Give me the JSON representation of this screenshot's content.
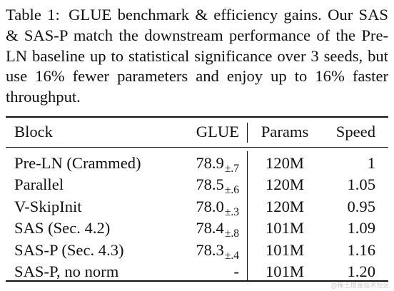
{
  "caption": {
    "label": "Table 1:",
    "text": "GLUE benchmark & efficiency gains. Our SAS & SAS-P match the downstream performance of the Pre-LN baseline up to statistical significance over 3 seeds, but use 16% fewer parameters and enjoy up to 16% faster throughput."
  },
  "table": {
    "headers": {
      "block": "Block",
      "glue": "GLUE",
      "params": "Params",
      "speed": "Speed"
    },
    "rows": [
      {
        "block": "Pre-LN (Crammed)",
        "glue": "78.9",
        "glue_pm": "±.7",
        "params": "120M",
        "speed": "1"
      },
      {
        "block": "Parallel",
        "glue": "78.5",
        "glue_pm": "±.6",
        "params": "120M",
        "speed": "1.05"
      },
      {
        "block": "V-SkipInit",
        "glue": "78.0",
        "glue_pm": "±.3",
        "params": "120M",
        "speed": "0.95"
      },
      {
        "block": "SAS (Sec. 4.2)",
        "glue": "78.4",
        "glue_pm": "±.8",
        "params": "101M",
        "speed": "1.09"
      },
      {
        "block": "SAS-P (Sec. 4.3)",
        "glue": "78.3",
        "glue_pm": "±.4",
        "params": "101M",
        "speed": "1.16"
      },
      {
        "block": "SAS-P, no norm",
        "glue": "-",
        "glue_pm": "",
        "params": "101M",
        "speed": "1.20"
      }
    ]
  },
  "watermark": "@稀土掘金技术社区"
}
